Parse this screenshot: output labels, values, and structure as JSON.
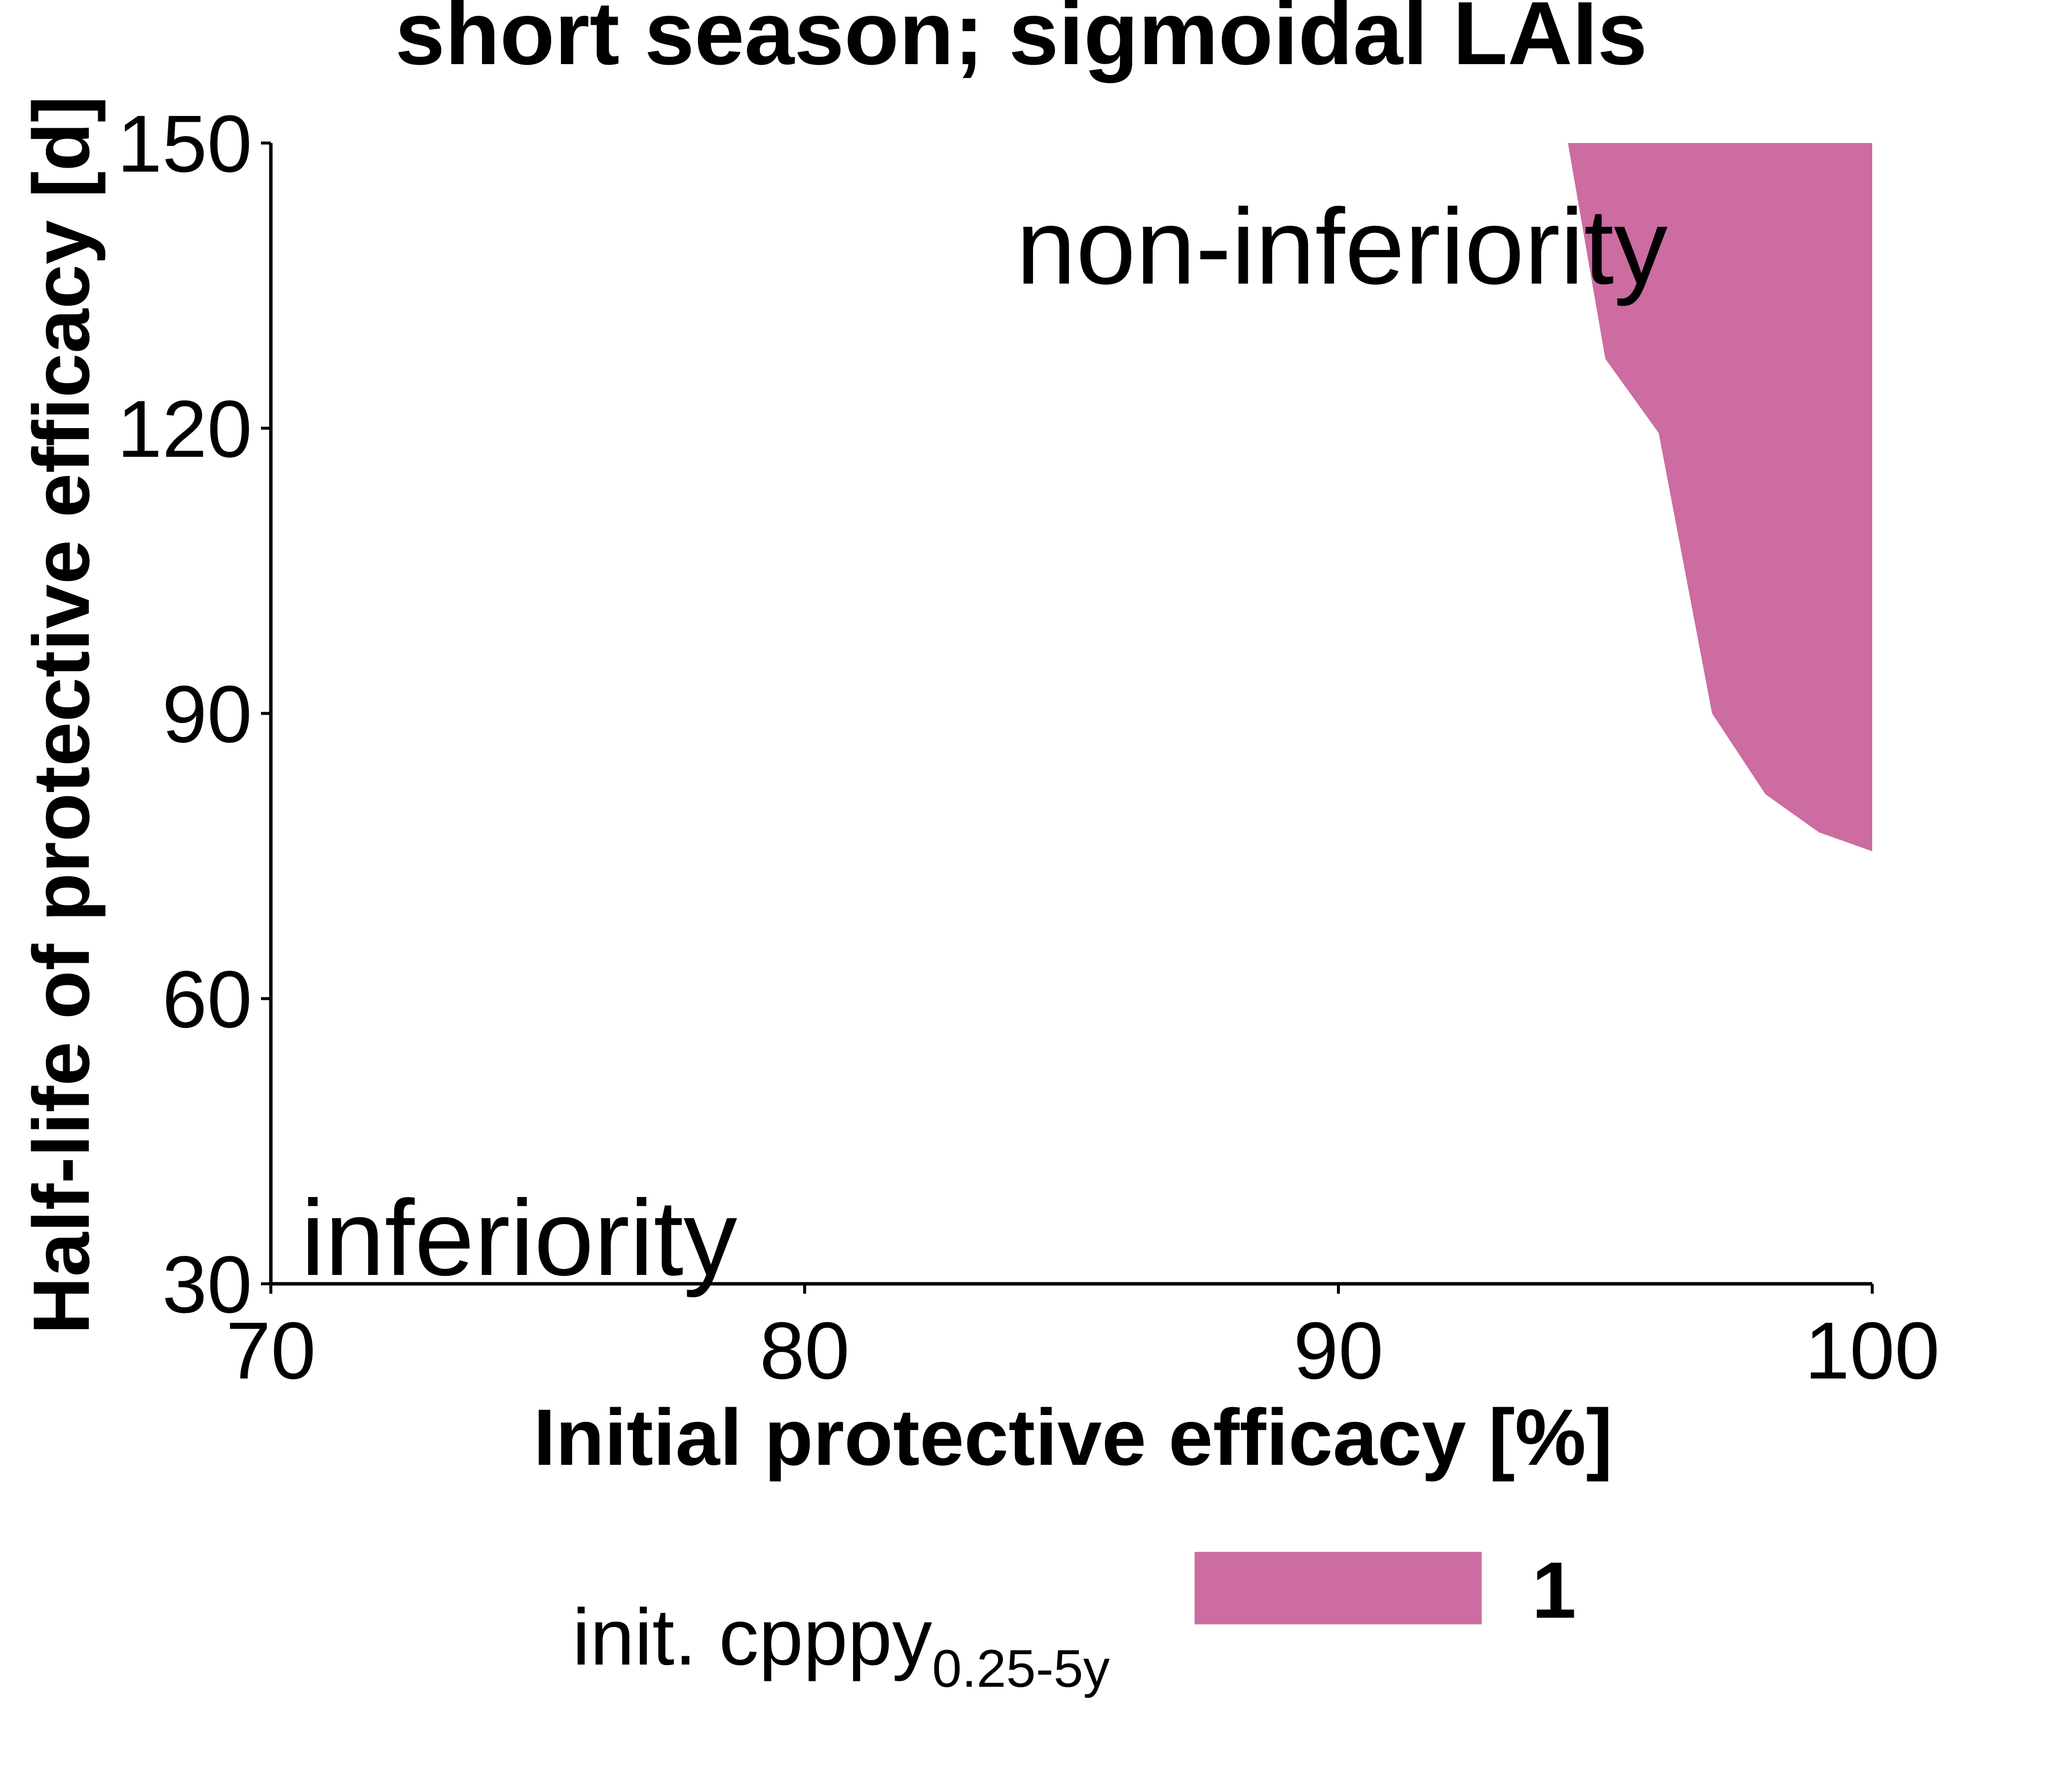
{
  "chart_data": {
    "type": "area",
    "title": "short season; sigmoidal LAIs",
    "xlabel": "Initial protective efficacy [%]",
    "ylabel": "Half-life of protective efficacy [d]",
    "xlim": [
      70,
      100
    ],
    "ylim": [
      30,
      150
    ],
    "x_ticks": [
      70,
      80,
      90,
      100
    ],
    "y_ticks": [
      30,
      60,
      90,
      120,
      150
    ],
    "x_tick_labels": [
      "70",
      "80",
      "90",
      "100"
    ],
    "y_tick_labels": [
      "30",
      "60",
      "90",
      "120",
      "150"
    ],
    "grid": false,
    "annotations": {
      "non_inferiority": "non-inferiority",
      "inferiority": "inferiority"
    },
    "legend": {
      "title_main": "init. cpppy",
      "title_subscript": "0.25-5y",
      "placement": "bottom",
      "entries": [
        {
          "label": "1",
          "color": "#cc6ca0"
        }
      ]
    },
    "series": [
      {
        "name": "1",
        "color": "#cc6ca0",
        "polygon": [
          [
            94.3,
            150
          ],
          [
            95.0,
            127.3
          ],
          [
            96.0,
            119.5
          ],
          [
            97.0,
            90.0
          ],
          [
            98.0,
            81.5
          ],
          [
            99.0,
            77.5
          ],
          [
            100.0,
            75.5
          ],
          [
            100.0,
            150
          ]
        ]
      }
    ]
  }
}
